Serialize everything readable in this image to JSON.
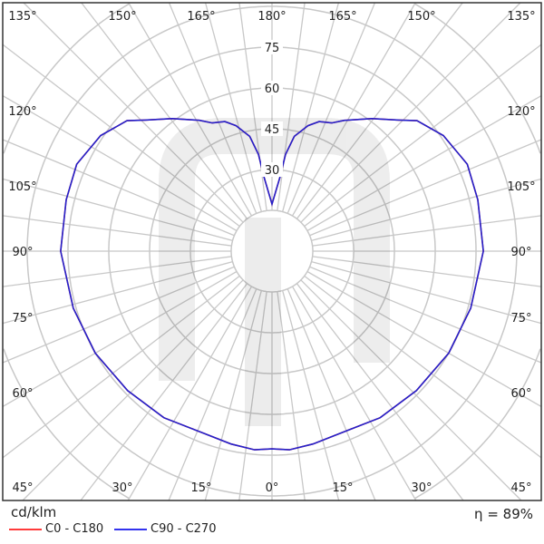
{
  "chart_data": {
    "type": "polar-line",
    "unit": "cd/klm",
    "radial_ticks": [
      30,
      45,
      60,
      75
    ],
    "rings": [
      15,
      30,
      45,
      60,
      75,
      90,
      105
    ],
    "angle_labels": {
      "top": [
        "135°",
        "150°",
        "165°",
        "180°",
        "165°",
        "150°",
        "135°"
      ],
      "left": [
        "120°",
        "105°",
        "90°",
        "75°",
        "60°"
      ],
      "right": [
        "120°",
        "105°",
        "90°",
        "75°",
        "60°"
      ],
      "bottom": [
        "45°",
        "30°",
        "15°",
        "0°",
        "15°",
        "30°",
        "45°"
      ]
    },
    "gamma": [
      0,
      5,
      12,
      20,
      33,
      46,
      60,
      74,
      90,
      104,
      114,
      124,
      132,
      136,
      143,
      151,
      155,
      160,
      164,
      169,
      172,
      174,
      180
    ],
    "series": [
      {
        "name": "C0 - C180",
        "color": "#ff3b3b",
        "values": [
          72.7,
          73.3,
          72.5,
          71.5,
          73,
          73.8,
          75,
          76,
          77.7,
          78,
          78.6,
          76,
          71.7,
          67,
          61,
          55,
          52,
          50.7,
          48,
          43,
          36,
          27,
          17.3
        ]
      },
      {
        "name": "C90 - C270",
        "color": "#2222cc",
        "values": [
          72.7,
          73.3,
          72.5,
          71.5,
          73,
          73.8,
          75,
          76,
          77.7,
          78,
          78.6,
          76,
          71.7,
          67,
          61,
          55,
          52,
          50.7,
          48,
          43,
          36,
          27,
          17.3
        ]
      }
    ],
    "efficiency": "η = 89%"
  }
}
